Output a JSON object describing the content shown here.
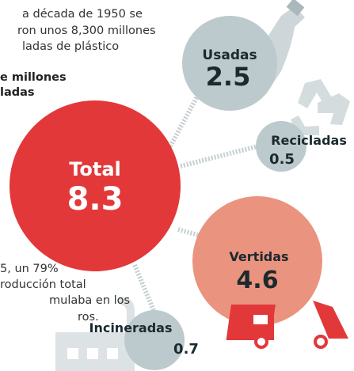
{
  "intro": [
    "a década de 1950 se",
    "ron unos 8,300 millones",
    "ladas de plástico"
  ],
  "unit": [
    "e millones",
    "ladas"
  ],
  "note": [
    "5, un 79%",
    "roducción total",
    "mulaba en los",
    "ros."
  ],
  "nodes": [
    {
      "label": "Total",
      "value": "8.3"
    },
    {
      "label": "Usadas",
      "value": "2.5"
    },
    {
      "label": "Recicladas",
      "value": "0.5"
    },
    {
      "label": "Vertidas",
      "value": "4.6"
    },
    {
      "label": "Incineradas",
      "value": "0.7"
    }
  ]
}
